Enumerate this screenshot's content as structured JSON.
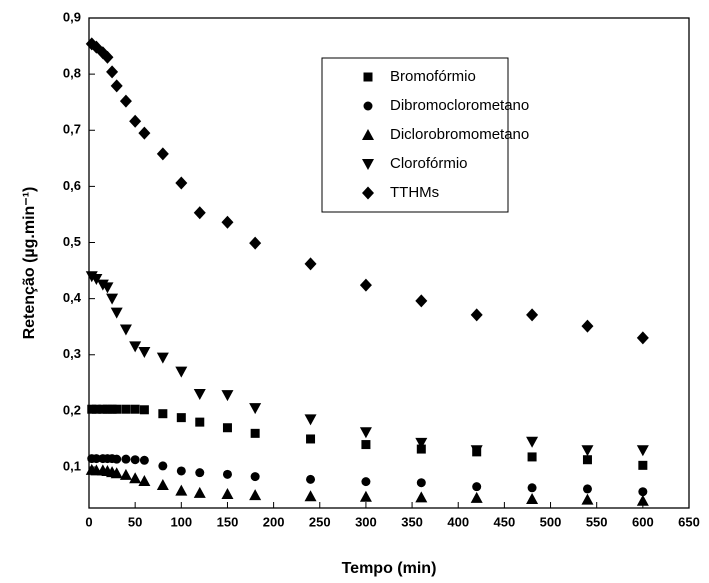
{
  "chart_data": {
    "type": "scatter",
    "x_label": "Tempo (min)",
    "y_label": "Retenção (µg.min⁻¹)",
    "x": [
      3,
      8,
      15,
      20,
      25,
      30,
      40,
      50,
      60,
      80,
      100,
      120,
      150,
      180,
      240,
      300,
      360,
      420,
      480,
      540,
      600
    ],
    "series": [
      {
        "name": "Bromofórmio",
        "color": "#000000",
        "marker": "square",
        "values": [
          0.203,
          0.203,
          0.203,
          0.203,
          0.203,
          0.203,
          0.203,
          0.203,
          0.202,
          0.195,
          0.188,
          0.18,
          0.17,
          0.16,
          0.15,
          0.14,
          0.132,
          0.127,
          0.118,
          0.113,
          0.103
        ]
      },
      {
        "name": "Dibromoclorometano",
        "color": "#000000",
        "marker": "circle",
        "values": [
          0.115,
          0.115,
          0.115,
          0.115,
          0.115,
          0.114,
          0.114,
          0.113,
          0.112,
          0.102,
          0.093,
          0.09,
          0.087,
          0.083,
          0.078,
          0.074,
          0.072,
          0.065,
          0.063,
          0.061,
          0.056
        ]
      },
      {
        "name": "Diclorobromometano",
        "color": "#000000",
        "marker": "triangle-up",
        "values": [
          0.095,
          0.094,
          0.094,
          0.093,
          0.091,
          0.089,
          0.086,
          0.08,
          0.075,
          0.068,
          0.058,
          0.054,
          0.052,
          0.05,
          0.048,
          0.047,
          0.046,
          0.045,
          0.043,
          0.042,
          0.04
        ]
      },
      {
        "name": "Clorofórmio",
        "color": "#000000",
        "marker": "triangle-down",
        "values": [
          0.44,
          0.435,
          0.425,
          0.42,
          0.4,
          0.375,
          0.345,
          0.315,
          0.305,
          0.295,
          0.27,
          0.23,
          0.228,
          0.205,
          0.185,
          0.162,
          0.143,
          0.13,
          0.145,
          0.13,
          0.13
        ]
      },
      {
        "name": "TTHMs",
        "color": "#000000",
        "marker": "diamond",
        "values": [
          0.854,
          0.848,
          0.838,
          0.83,
          0.804,
          0.779,
          0.752,
          0.716,
          0.695,
          0.658,
          0.606,
          0.553,
          0.536,
          0.499,
          0.462,
          0.424,
          0.396,
          0.371,
          0.371,
          0.351,
          0.33
        ]
      }
    ],
    "xlim": [
      0,
      650
    ],
    "xticks": [
      0,
      50,
      100,
      150,
      200,
      250,
      300,
      350,
      400,
      450,
      500,
      550,
      600,
      650
    ],
    "ylim": [
      0.027,
      0.9
    ],
    "yticks": [
      {
        "value": 0.1,
        "label": "0,1"
      },
      {
        "value": 0.2,
        "label": "0,2"
      },
      {
        "value": 0.3,
        "label": "0,3"
      },
      {
        "value": 0.4,
        "label": "0,4"
      },
      {
        "value": 0.5,
        "label": "0,5"
      },
      {
        "value": 0.6,
        "label": "0,6"
      },
      {
        "value": 0.7,
        "label": "0,7"
      },
      {
        "value": 0.8,
        "label": "0,8"
      },
      {
        "value": 0.9,
        "label": "0,9"
      }
    ],
    "grid": false,
    "legend": "top-right"
  }
}
